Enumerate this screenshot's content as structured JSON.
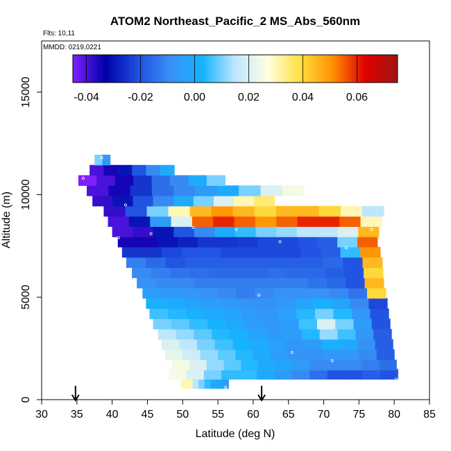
{
  "chart_data": {
    "type": "heatmap",
    "title": "ATOM2 Northeast_Pacific_2 MS_Abs_560nm",
    "flights_note": "Flts: 10,11",
    "dates_note": "MMDD: 0219,0221",
    "xlabel": "Latitude (deg N)",
    "ylabel": "Altitude (m)",
    "xlim": [
      30,
      85
    ],
    "ylim": [
      0,
      17500
    ],
    "xticks": [
      30,
      35,
      40,
      45,
      50,
      55,
      60,
      65,
      70,
      75,
      80,
      85
    ],
    "yticks": [
      0,
      5000,
      10000,
      15000
    ],
    "grid": false,
    "colorbar": {
      "min": -0.045,
      "max": 0.075,
      "ticks": [
        "-0.04",
        "-0.02",
        "0.00",
        "0.02",
        "0.04",
        "0.06"
      ],
      "tick_values": [
        -0.04,
        -0.02,
        0.0,
        0.02,
        0.04,
        0.06
      ],
      "colors": [
        "#7f1fff",
        "#0000a8",
        "#1f4fe0",
        "#3a8ff5",
        "#15b4ff",
        "#bfe6ff",
        "#ffffe0",
        "#ffe040",
        "#ff9000",
        "#e00000",
        "#a01515"
      ]
    },
    "profile_start_x": [
      34.8,
      61.2
    ],
    "marker_label": "arrows mark profile start latitudes",
    "rows": [
      {
        "alt": 800,
        "x0": 49.7,
        "x1": 56.5,
        "values": [
          0.03,
          0.03,
          0.015,
          0.01,
          0.005,
          0.0,
          -0.002,
          -0.005
        ]
      },
      {
        "alt": 1250,
        "x0": 48.0,
        "x1": 80.5,
        "values": [
          0.025,
          0.02,
          0.01,
          0.005,
          0.005,
          0.0,
          -0.005,
          -0.01,
          -0.015,
          -0.02,
          -0.02,
          -0.018,
          -0.02
        ]
      },
      {
        "alt": 1700,
        "x0": 48.5,
        "x1": 80.3,
        "values": [
          0.025,
          0.02,
          0.012,
          0.008,
          0.004,
          0.0,
          -0.002,
          -0.005,
          -0.01,
          -0.01,
          -0.01,
          -0.012,
          -0.015
        ]
      },
      {
        "alt": 2200,
        "x0": 47.5,
        "x1": 80.0,
        "values": [
          0.022,
          0.018,
          0.012,
          0.008,
          0.004,
          0.0,
          -0.004,
          -0.008,
          -0.008,
          -0.006,
          -0.006,
          -0.01,
          -0.018
        ]
      },
      {
        "alt": 2700,
        "x0": 47.0,
        "x1": 79.8,
        "values": [
          0.02,
          0.015,
          0.01,
          0.006,
          0.003,
          0.0,
          -0.003,
          -0.006,
          -0.005,
          0.002,
          0.0,
          -0.008,
          -0.018
        ]
      },
      {
        "alt": 3200,
        "x0": 46.5,
        "x1": 79.6,
        "values": [
          0.015,
          0.012,
          0.008,
          0.004,
          0.002,
          -0.002,
          -0.005,
          -0.004,
          0.004,
          0.012,
          0.006,
          -0.006,
          -0.018
        ]
      },
      {
        "alt": 3700,
        "x0": 45.8,
        "x1": 79.4,
        "values": [
          0.01,
          0.008,
          0.005,
          0.002,
          -0.001,
          -0.004,
          -0.006,
          -0.004,
          0.006,
          0.02,
          0.01,
          -0.004,
          -0.02
        ]
      },
      {
        "alt": 4200,
        "x0": 45.3,
        "x1": 79.2,
        "values": [
          0.006,
          0.004,
          0.002,
          0.0,
          -0.002,
          -0.005,
          -0.006,
          -0.003,
          0.004,
          0.01,
          0.004,
          -0.006,
          -0.02
        ]
      },
      {
        "alt": 4700,
        "x0": 44.8,
        "x1": 79.0,
        "values": [
          0.002,
          0.0,
          -0.002,
          -0.004,
          -0.005,
          -0.007,
          -0.008,
          -0.006,
          -0.002,
          0.002,
          -0.002,
          -0.01,
          -0.022
        ]
      },
      {
        "alt": 5200,
        "x0": 44.3,
        "x1": 78.8,
        "values": [
          -0.004,
          -0.005,
          -0.006,
          -0.008,
          -0.01,
          -0.012,
          -0.01,
          -0.008,
          -0.008,
          -0.008,
          -0.01,
          -0.014,
          0.04
        ]
      },
      {
        "alt": 5700,
        "x0": 43.5,
        "x1": 78.5,
        "values": [
          -0.008,
          -0.01,
          -0.01,
          -0.012,
          -0.012,
          -0.012,
          -0.012,
          -0.012,
          -0.012,
          -0.014,
          -0.016,
          -0.02,
          0.045
        ]
      },
      {
        "alt": 6200,
        "x0": 42.8,
        "x1": 78.4,
        "values": [
          -0.01,
          -0.012,
          -0.014,
          -0.015,
          -0.016,
          -0.016,
          -0.016,
          -0.015,
          -0.016,
          -0.016,
          -0.018,
          -0.02,
          0.04
        ]
      },
      {
        "alt": 6700,
        "x0": 42.0,
        "x1": 78.3,
        "values": [
          -0.012,
          -0.016,
          -0.02,
          -0.018,
          -0.018,
          -0.018,
          -0.018,
          -0.018,
          -0.018,
          -0.018,
          -0.016,
          -0.02,
          0.045
        ]
      },
      {
        "alt": 7200,
        "x0": 41.4,
        "x1": 78.0,
        "values": [
          -0.025,
          -0.025,
          -0.022,
          -0.02,
          -0.02,
          -0.022,
          -0.022,
          -0.022,
          -0.022,
          -0.02,
          -0.018,
          0.005,
          0.05
        ]
      },
      {
        "alt": 7700,
        "x0": 40.8,
        "x1": 77.6,
        "values": [
          -0.035,
          -0.035,
          -0.03,
          -0.028,
          -0.025,
          -0.025,
          -0.024,
          -0.022,
          -0.022,
          -0.02,
          -0.018,
          0.01,
          0.055
        ]
      },
      {
        "alt": 8200,
        "x0": 40.0,
        "x1": 77.8,
        "values": [
          -0.04,
          -0.038,
          -0.03,
          -0.02,
          -0.01,
          0.0,
          0.005,
          0.01,
          0.012,
          0.015,
          0.015,
          0.02,
          0.045
        ]
      },
      {
        "alt": 8700,
        "x0": 39.4,
        "x1": 78.2,
        "values": [
          -0.04,
          -0.03,
          -0.005,
          0.02,
          0.055,
          0.06,
          0.055,
          0.05,
          0.055,
          0.06,
          0.06,
          0.055,
          0.03
        ]
      },
      {
        "alt": 9200,
        "x0": 38.8,
        "x1": 78.5,
        "values": [
          -0.038,
          -0.02,
          0.01,
          0.03,
          0.045,
          0.05,
          0.045,
          0.04,
          0.045,
          0.045,
          0.04,
          0.03,
          0.015
        ]
      },
      {
        "alt": 9700,
        "x0": 37.2,
        "x1": 63.0,
        "values": [
          -0.038,
          -0.03,
          -0.02,
          -0.01,
          0.0,
          0.01,
          0.02,
          0.03,
          0.035
        ]
      },
      {
        "alt": 10200,
        "x0": 36.4,
        "x1": 67.2,
        "values": [
          -0.04,
          -0.035,
          -0.025,
          -0.015,
          -0.01,
          -0.005,
          0.0,
          0.01,
          0.02,
          0.025
        ]
      },
      {
        "alt": 10700,
        "x0": 35.2,
        "x1": 56.0,
        "values": [
          -0.045,
          -0.04,
          -0.035,
          -0.025,
          -0.015,
          -0.01,
          0.0,
          0.01
        ]
      },
      {
        "alt": 11200,
        "x0": 36.8,
        "x1": 48.8,
        "values": [
          -0.04,
          -0.035,
          -0.03,
          -0.02,
          -0.01,
          0.0
        ]
      },
      {
        "alt": 11700,
        "x0": 37.5,
        "x1": 39.7,
        "values": [
          0.01,
          -0.005
        ]
      }
    ],
    "points": [
      {
        "x": 35.9,
        "y": 10800
      },
      {
        "x": 38.5,
        "y": 11800
      },
      {
        "x": 41.9,
        "y": 9500
      },
      {
        "x": 40.9,
        "y": 7900
      },
      {
        "x": 45.5,
        "y": 8100
      },
      {
        "x": 51.5,
        "y": 8400
      },
      {
        "x": 57.6,
        "y": 8300
      },
      {
        "x": 59.6,
        "y": 9600
      },
      {
        "x": 67.0,
        "y": 10100
      },
      {
        "x": 63.8,
        "y": 7700
      },
      {
        "x": 73.2,
        "y": 7400
      },
      {
        "x": 76.8,
        "y": 8300
      },
      {
        "x": 60.8,
        "y": 5100
      },
      {
        "x": 65.5,
        "y": 2300
      },
      {
        "x": 71.2,
        "y": 1900
      },
      {
        "x": 80.3,
        "y": 1000
      },
      {
        "x": 56.1,
        "y": 600
      }
    ]
  }
}
